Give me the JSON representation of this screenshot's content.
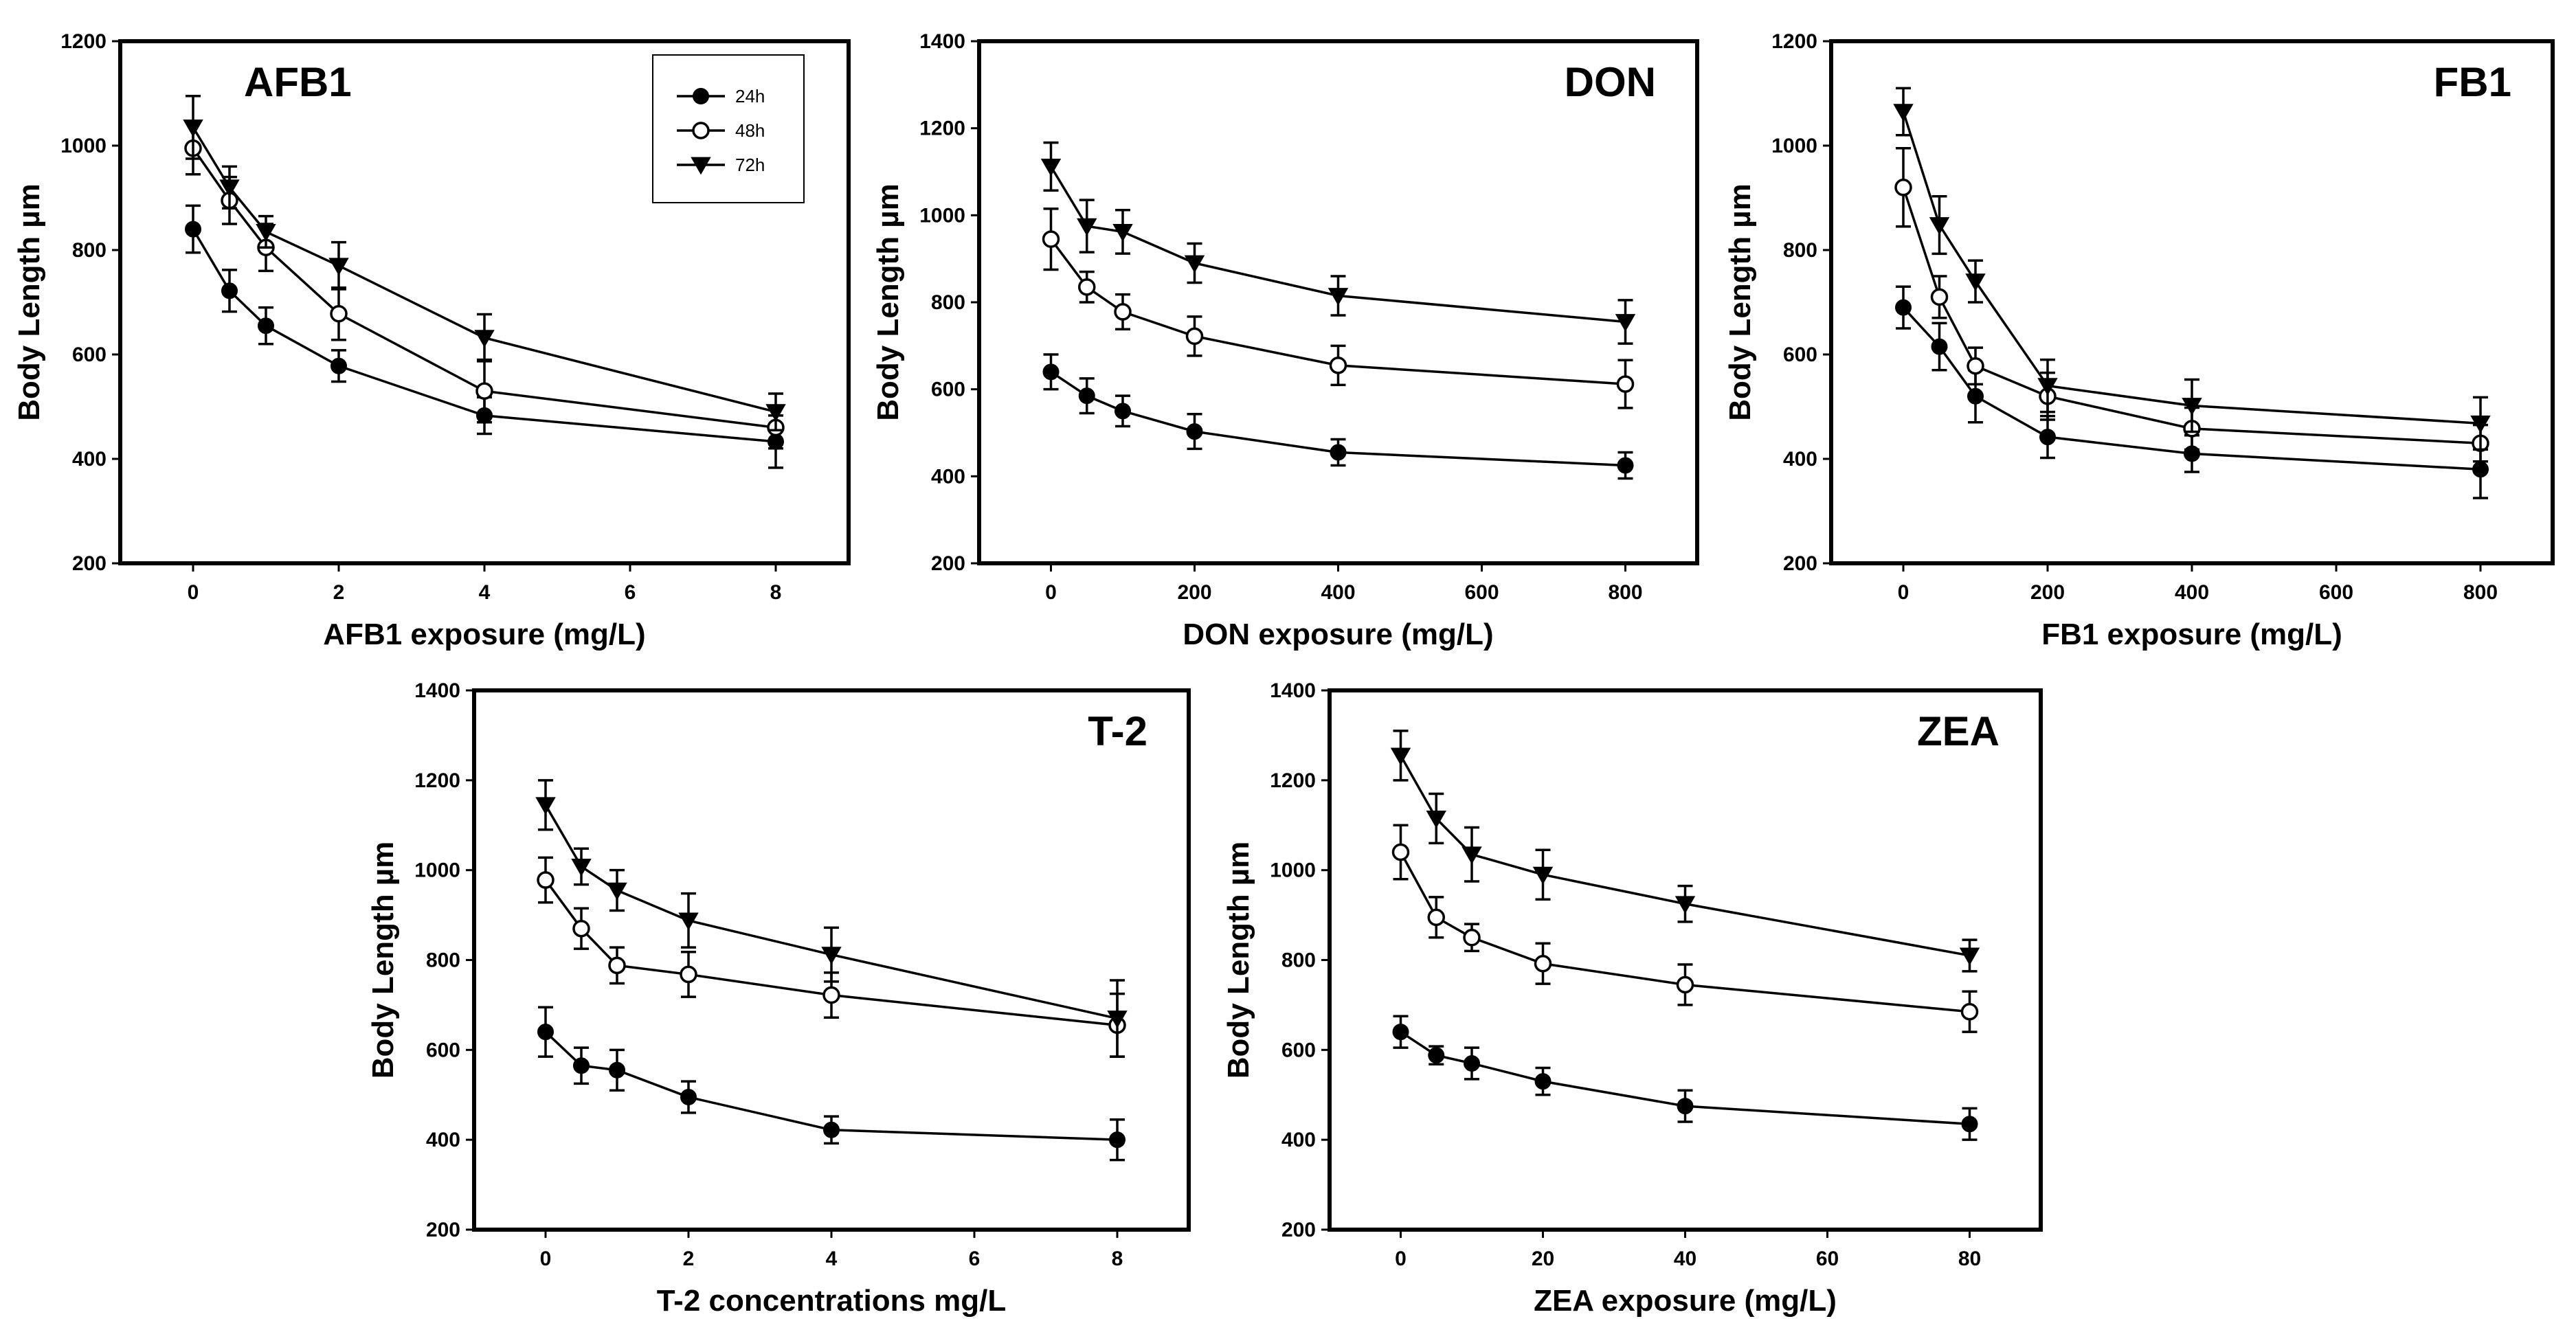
{
  "chart_data": [
    {
      "type": "line",
      "title": "AFB1",
      "xlabel": "AFB1 exposure (mg/L)",
      "ylabel": "Body Length µm",
      "x": [
        0,
        0.5,
        1,
        2,
        4,
        8
      ],
      "xlim": [
        -1,
        9
      ],
      "ylim": [
        200,
        1200
      ],
      "xticks": [
        0,
        2,
        4,
        6,
        8
      ],
      "yticks": [
        200,
        400,
        600,
        800,
        1000,
        1200
      ],
      "legend": {
        "position": "top-right",
        "entries": [
          "24h",
          "48h",
          "72h"
        ]
      },
      "series": [
        {
          "name": "24h",
          "marker": "filled-circle",
          "values": [
            840,
            722,
            655,
            578,
            483,
            433
          ],
          "errors": [
            45,
            40,
            35,
            30,
            35,
            50
          ]
        },
        {
          "name": "48h",
          "marker": "open-circle",
          "values": [
            995,
            895,
            805,
            678,
            530,
            460
          ],
          "errors": [
            50,
            45,
            45,
            50,
            60,
            40
          ]
        },
        {
          "name": "72h",
          "marker": "filled-triangle-down",
          "values": [
            1035,
            920,
            835,
            770,
            632,
            490
          ],
          "errors": [
            60,
            40,
            30,
            45,
            45,
            35
          ]
        }
      ]
    },
    {
      "type": "line",
      "title": "DON",
      "xlabel": "DON exposure (mg/L)",
      "ylabel": "Body Length µm",
      "x": [
        0,
        50,
        100,
        200,
        400,
        800
      ],
      "xlim": [
        -100,
        900
      ],
      "ylim": [
        200,
        1400
      ],
      "xticks": [
        0,
        200,
        400,
        600,
        800
      ],
      "yticks": [
        200,
        400,
        600,
        800,
        1000,
        1200,
        1400
      ],
      "series": [
        {
          "name": "24h",
          "marker": "filled-circle",
          "values": [
            640,
            585,
            550,
            503,
            455,
            425
          ],
          "errors": [
            40,
            40,
            35,
            40,
            30,
            30
          ]
        },
        {
          "name": "48h",
          "marker": "open-circle",
          "values": [
            945,
            835,
            778,
            722,
            655,
            612
          ],
          "errors": [
            70,
            35,
            40,
            45,
            45,
            55
          ]
        },
        {
          "name": "72h",
          "marker": "filled-triangle-down",
          "values": [
            1112,
            975,
            962,
            890,
            815,
            755
          ],
          "errors": [
            55,
            60,
            50,
            45,
            45,
            50
          ]
        }
      ]
    },
    {
      "type": "line",
      "title": "FB1",
      "xlabel": "FB1 exposure (mg/L)",
      "ylabel": "Body Length µm",
      "x": [
        0,
        50,
        100,
        200,
        400,
        800
      ],
      "xlim": [
        -100,
        900
      ],
      "ylim": [
        200,
        1200
      ],
      "xticks": [
        0,
        200,
        400,
        600,
        800
      ],
      "yticks": [
        200,
        400,
        600,
        800,
        1000,
        1200
      ],
      "series": [
        {
          "name": "24h",
          "marker": "filled-circle",
          "values": [
            690,
            615,
            520,
            442,
            410,
            380
          ],
          "errors": [
            40,
            45,
            50,
            40,
            35,
            55
          ]
        },
        {
          "name": "48h",
          "marker": "open-circle",
          "values": [
            920,
            710,
            578,
            520,
            458,
            430
          ],
          "errors": [
            75,
            40,
            35,
            45,
            40,
            35
          ]
        },
        {
          "name": "72h",
          "marker": "filled-triangle-down",
          "values": [
            1065,
            848,
            740,
            540,
            502,
            468
          ],
          "errors": [
            45,
            55,
            40,
            50,
            50,
            50
          ]
        }
      ]
    },
    {
      "type": "line",
      "title": "T-2",
      "xlabel": "T-2 concentrations mg/L",
      "ylabel": "Body Length µm",
      "x": [
        0,
        0.5,
        1,
        2,
        4,
        8
      ],
      "xlim": [
        -1,
        9
      ],
      "ylim": [
        200,
        1400
      ],
      "xticks": [
        0,
        2,
        4,
        6,
        8
      ],
      "yticks": [
        200,
        400,
        600,
        800,
        1000,
        1200,
        1400
      ],
      "series": [
        {
          "name": "24h",
          "marker": "filled-circle",
          "values": [
            640,
            565,
            555,
            495,
            422,
            400
          ],
          "errors": [
            55,
            40,
            45,
            35,
            30,
            45
          ]
        },
        {
          "name": "48h",
          "marker": "open-circle",
          "values": [
            978,
            870,
            788,
            768,
            722,
            655
          ],
          "errors": [
            50,
            45,
            40,
            50,
            50,
            70
          ]
        },
        {
          "name": "72h",
          "marker": "filled-triangle-down",
          "values": [
            1145,
            1008,
            955,
            888,
            812,
            670
          ],
          "errors": [
            55,
            40,
            45,
            60,
            60,
            85
          ]
        }
      ]
    },
    {
      "type": "line",
      "title": "ZEA",
      "xlabel": "ZEA exposure (mg/L)",
      "ylabel": "Body Length µm",
      "x": [
        0,
        5,
        10,
        20,
        40,
        80
      ],
      "xlim": [
        -10,
        90
      ],
      "ylim": [
        200,
        1400
      ],
      "xticks": [
        0,
        20,
        40,
        60,
        80
      ],
      "yticks": [
        200,
        400,
        600,
        800,
        1000,
        1200,
        1400
      ],
      "series": [
        {
          "name": "24h",
          "marker": "filled-circle",
          "values": [
            640,
            588,
            570,
            530,
            475,
            435
          ],
          "errors": [
            35,
            20,
            35,
            30,
            35,
            35
          ]
        },
        {
          "name": "48h",
          "marker": "open-circle",
          "values": [
            1040,
            895,
            850,
            792,
            745,
            685
          ],
          "errors": [
            60,
            45,
            30,
            45,
            45,
            45
          ]
        },
        {
          "name": "72h",
          "marker": "filled-triangle-down",
          "values": [
            1255,
            1115,
            1035,
            990,
            925,
            810
          ],
          "errors": [
            55,
            55,
            60,
            55,
            40,
            35
          ]
        }
      ]
    }
  ]
}
